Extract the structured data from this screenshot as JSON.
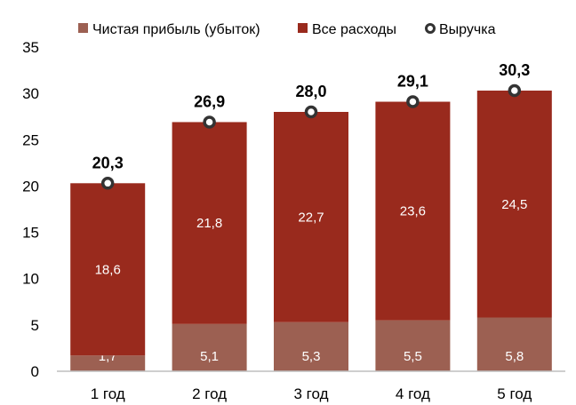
{
  "chart_data": {
    "type": "bar",
    "stacked": true,
    "categories": [
      "1 год",
      "2 год",
      "3 год",
      "4 год",
      "5 год"
    ],
    "series": [
      {
        "name": "Чистая прибыль (убыток)",
        "kind": "bar",
        "color": "#9C6052",
        "values": [
          1.7,
          5.1,
          5.3,
          5.5,
          5.8
        ],
        "labels": [
          "1,7",
          "5,1",
          "5,3",
          "5,5",
          "5,8"
        ]
      },
      {
        "name": "Все расходы",
        "kind": "bar",
        "color": "#992A1D",
        "values": [
          18.6,
          21.8,
          22.7,
          23.6,
          24.5
        ],
        "labels": [
          "18,6",
          "21,8",
          "22,7",
          "23,6",
          "24,5"
        ]
      },
      {
        "name": "Выручка",
        "kind": "marker",
        "color": "#333333",
        "values": [
          20.3,
          26.9,
          28.0,
          29.1,
          30.3
        ],
        "labels": [
          "20,3",
          "26,9",
          "28,0",
          "29,1",
          "30,3"
        ]
      }
    ],
    "ylim": [
      0,
      35
    ],
    "yticks": [
      "0",
      "5",
      "10",
      "15",
      "20",
      "25",
      "30",
      "35"
    ],
    "grid": false,
    "legend": "top"
  }
}
